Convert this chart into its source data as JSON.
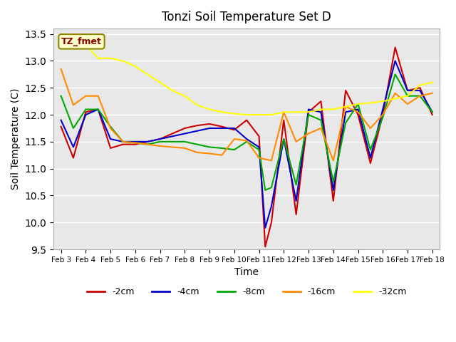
{
  "title": "Tonzi Soil Temperature Set D",
  "xlabel": "Time",
  "ylabel": "Soil Temperature (C)",
  "ylim": [
    9.5,
    13.6
  ],
  "background_color": "#e8e8e8",
  "annotation_text": "TZ_fmet",
  "annotation_bg": "#ffffcc",
  "annotation_border": "#888800",
  "annotation_text_color": "#8b0000",
  "xtick_labels": [
    "Feb 3",
    "Feb 4",
    "Feb 5",
    "Feb 6",
    "Feb 7",
    "Feb 8",
    "Feb 9",
    "Feb 10",
    "Feb 11",
    "Feb 12",
    "Feb 13",
    "Feb 14",
    "Feb 15",
    "Feb 16",
    "Feb 17",
    "Feb 18"
  ],
  "series": {
    "-2cm": {
      "color": "#cc0000",
      "x": [
        0,
        0.5,
        1.0,
        1.5,
        2.0,
        2.5,
        3.0,
        3.5,
        4.0,
        4.5,
        5.0,
        5.5,
        6.0,
        6.5,
        7.0,
        7.5,
        8.0,
        8.25,
        8.5,
        9.0,
        9.5,
        10.0,
        10.5,
        11.0,
        11.5,
        12.0,
        12.5,
        13.0,
        13.5,
        14.0,
        14.5,
        15.0
      ],
      "y": [
        11.78,
        11.2,
        12.05,
        12.1,
        11.38,
        11.45,
        11.45,
        11.5,
        11.55,
        11.65,
        11.75,
        11.8,
        11.83,
        11.78,
        11.72,
        11.9,
        11.6,
        9.55,
        10.0,
        11.9,
        10.15,
        12.05,
        12.25,
        10.4,
        12.45,
        12.0,
        11.1,
        12.0,
        13.25,
        12.45,
        12.5,
        12.0
      ]
    },
    "-4cm": {
      "color": "#0000cc",
      "x": [
        0,
        0.5,
        1.0,
        1.5,
        2.0,
        2.5,
        3.0,
        3.5,
        4.0,
        4.5,
        5.0,
        5.5,
        6.0,
        6.5,
        7.0,
        7.5,
        8.0,
        8.25,
        8.5,
        9.0,
        9.5,
        10.0,
        10.5,
        11.0,
        11.5,
        12.0,
        12.5,
        13.0,
        13.5,
        14.0,
        14.5,
        15.0
      ],
      "y": [
        11.9,
        11.4,
        12.0,
        12.1,
        11.55,
        11.5,
        11.5,
        11.5,
        11.55,
        11.6,
        11.65,
        11.7,
        11.75,
        11.75,
        11.75,
        11.55,
        11.4,
        9.9,
        10.3,
        11.55,
        10.4,
        12.1,
        12.05,
        10.6,
        12.05,
        12.1,
        11.2,
        12.1,
        13.0,
        12.45,
        12.45,
        12.05
      ]
    },
    "-8cm": {
      "color": "#00aa00",
      "x": [
        0,
        0.5,
        1.0,
        1.5,
        2.0,
        2.5,
        3.0,
        3.5,
        4.0,
        4.5,
        5.0,
        5.5,
        6.0,
        6.5,
        7.0,
        7.5,
        8.0,
        8.25,
        8.5,
        9.0,
        9.5,
        10.0,
        10.5,
        11.0,
        11.5,
        12.0,
        12.5,
        13.0,
        13.5,
        14.0,
        14.5,
        15.0
      ],
      "y": [
        12.35,
        11.75,
        12.1,
        12.1,
        11.78,
        11.5,
        11.48,
        11.45,
        11.5,
        11.5,
        11.5,
        11.45,
        11.4,
        11.38,
        11.35,
        11.5,
        11.35,
        10.6,
        10.65,
        11.55,
        10.7,
        12.0,
        11.9,
        10.75,
        11.85,
        12.2,
        11.35,
        11.95,
        12.75,
        12.35,
        12.35,
        12.05
      ]
    },
    "-16cm": {
      "color": "#ff8c00",
      "x": [
        0,
        0.5,
        1.0,
        1.5,
        2.0,
        2.5,
        3.0,
        3.5,
        4.0,
        4.5,
        5.0,
        5.5,
        6.0,
        6.5,
        7.0,
        7.5,
        8.0,
        8.5,
        9.0,
        9.5,
        10.0,
        10.5,
        11.0,
        11.5,
        12.0,
        12.5,
        13.0,
        13.5,
        14.0,
        14.5,
        15.0
      ],
      "y": [
        12.85,
        12.18,
        12.35,
        12.35,
        11.75,
        11.5,
        11.48,
        11.45,
        11.42,
        11.4,
        11.38,
        11.3,
        11.28,
        11.25,
        11.55,
        11.52,
        11.2,
        11.15,
        12.05,
        11.5,
        11.65,
        11.75,
        11.15,
        12.15,
        12.05,
        11.75,
        12.0,
        12.4,
        12.2,
        12.35,
        12.4
      ]
    },
    "-32cm": {
      "color": "#ffff00",
      "x": [
        0,
        0.5,
        1.0,
        1.5,
        2.0,
        2.5,
        3.0,
        3.5,
        4.0,
        4.5,
        5.0,
        5.5,
        6.0,
        6.5,
        7.0,
        7.5,
        8.0,
        8.5,
        9.0,
        9.5,
        10.0,
        10.5,
        11.0,
        11.5,
        12.0,
        12.5,
        13.0,
        13.5,
        14.0,
        14.5,
        15.0
      ],
      "y": [
        13.5,
        13.45,
        13.3,
        13.05,
        13.05,
        13.0,
        12.9,
        12.75,
        12.6,
        12.45,
        12.35,
        12.18,
        12.1,
        12.05,
        12.02,
        12.0,
        12.0,
        12.0,
        12.05,
        12.05,
        12.05,
        12.1,
        12.1,
        12.15,
        12.2,
        12.22,
        12.25,
        12.3,
        12.35,
        12.55,
        12.6
      ]
    }
  }
}
